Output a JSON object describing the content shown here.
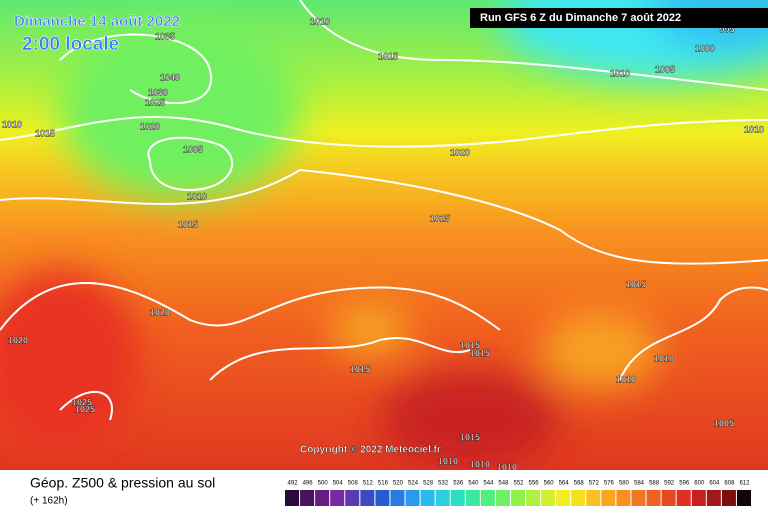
{
  "header": {
    "valid_date": "Dimanche 14 août 2022",
    "local_time": "2:00 locale",
    "run": "Run GFS 6 Z du Dimanche 7 août 2022"
  },
  "isobar_labels": [
    1010,
    1035,
    1040,
    1030,
    1025,
    1020,
    1005,
    1010,
    1015,
    1010,
    1015,
    1015,
    1010,
    1005,
    1000,
    995,
    1010,
    1020,
    1025,
    1015,
    1020,
    1020,
    1015,
    1015,
    1015,
    1010,
    1010,
    1025,
    1025,
    1005,
    1015,
    1010,
    1010,
    1010
  ],
  "copyright": "Copyright © 2022 Meteociel.fr",
  "footer": {
    "title": "Géop. Z500 & pression au sol",
    "lead": "(+ 162h)"
  },
  "scale": {
    "labels": [
      492,
      496,
      500,
      504,
      508,
      512,
      516,
      520,
      524,
      528,
      532,
      536,
      540,
      544,
      548,
      552,
      556,
      560,
      564,
      568,
      572,
      576,
      580,
      584,
      588,
      592,
      596,
      600,
      604,
      608,
      612
    ],
    "colors": [
      "#2a0a3a",
      "#4a1160",
      "#6a1a80",
      "#7a2aa0",
      "#5a3ab0",
      "#3a4ac0",
      "#2a5ad0",
      "#2a7ae0",
      "#2a9af0",
      "#2abaf0",
      "#2ad0e0",
      "#2ae0c0",
      "#3ae8a0",
      "#50f080",
      "#70f060",
      "#90f050",
      "#b0f040",
      "#d0f030",
      "#f0f020",
      "#f8e020",
      "#f8c020",
      "#f8a820",
      "#f89020",
      "#f07820",
      "#f06020",
      "#e84820",
      "#e03020",
      "#c82020",
      "#a01818",
      "#781010",
      "#100808"
    ]
  }
}
